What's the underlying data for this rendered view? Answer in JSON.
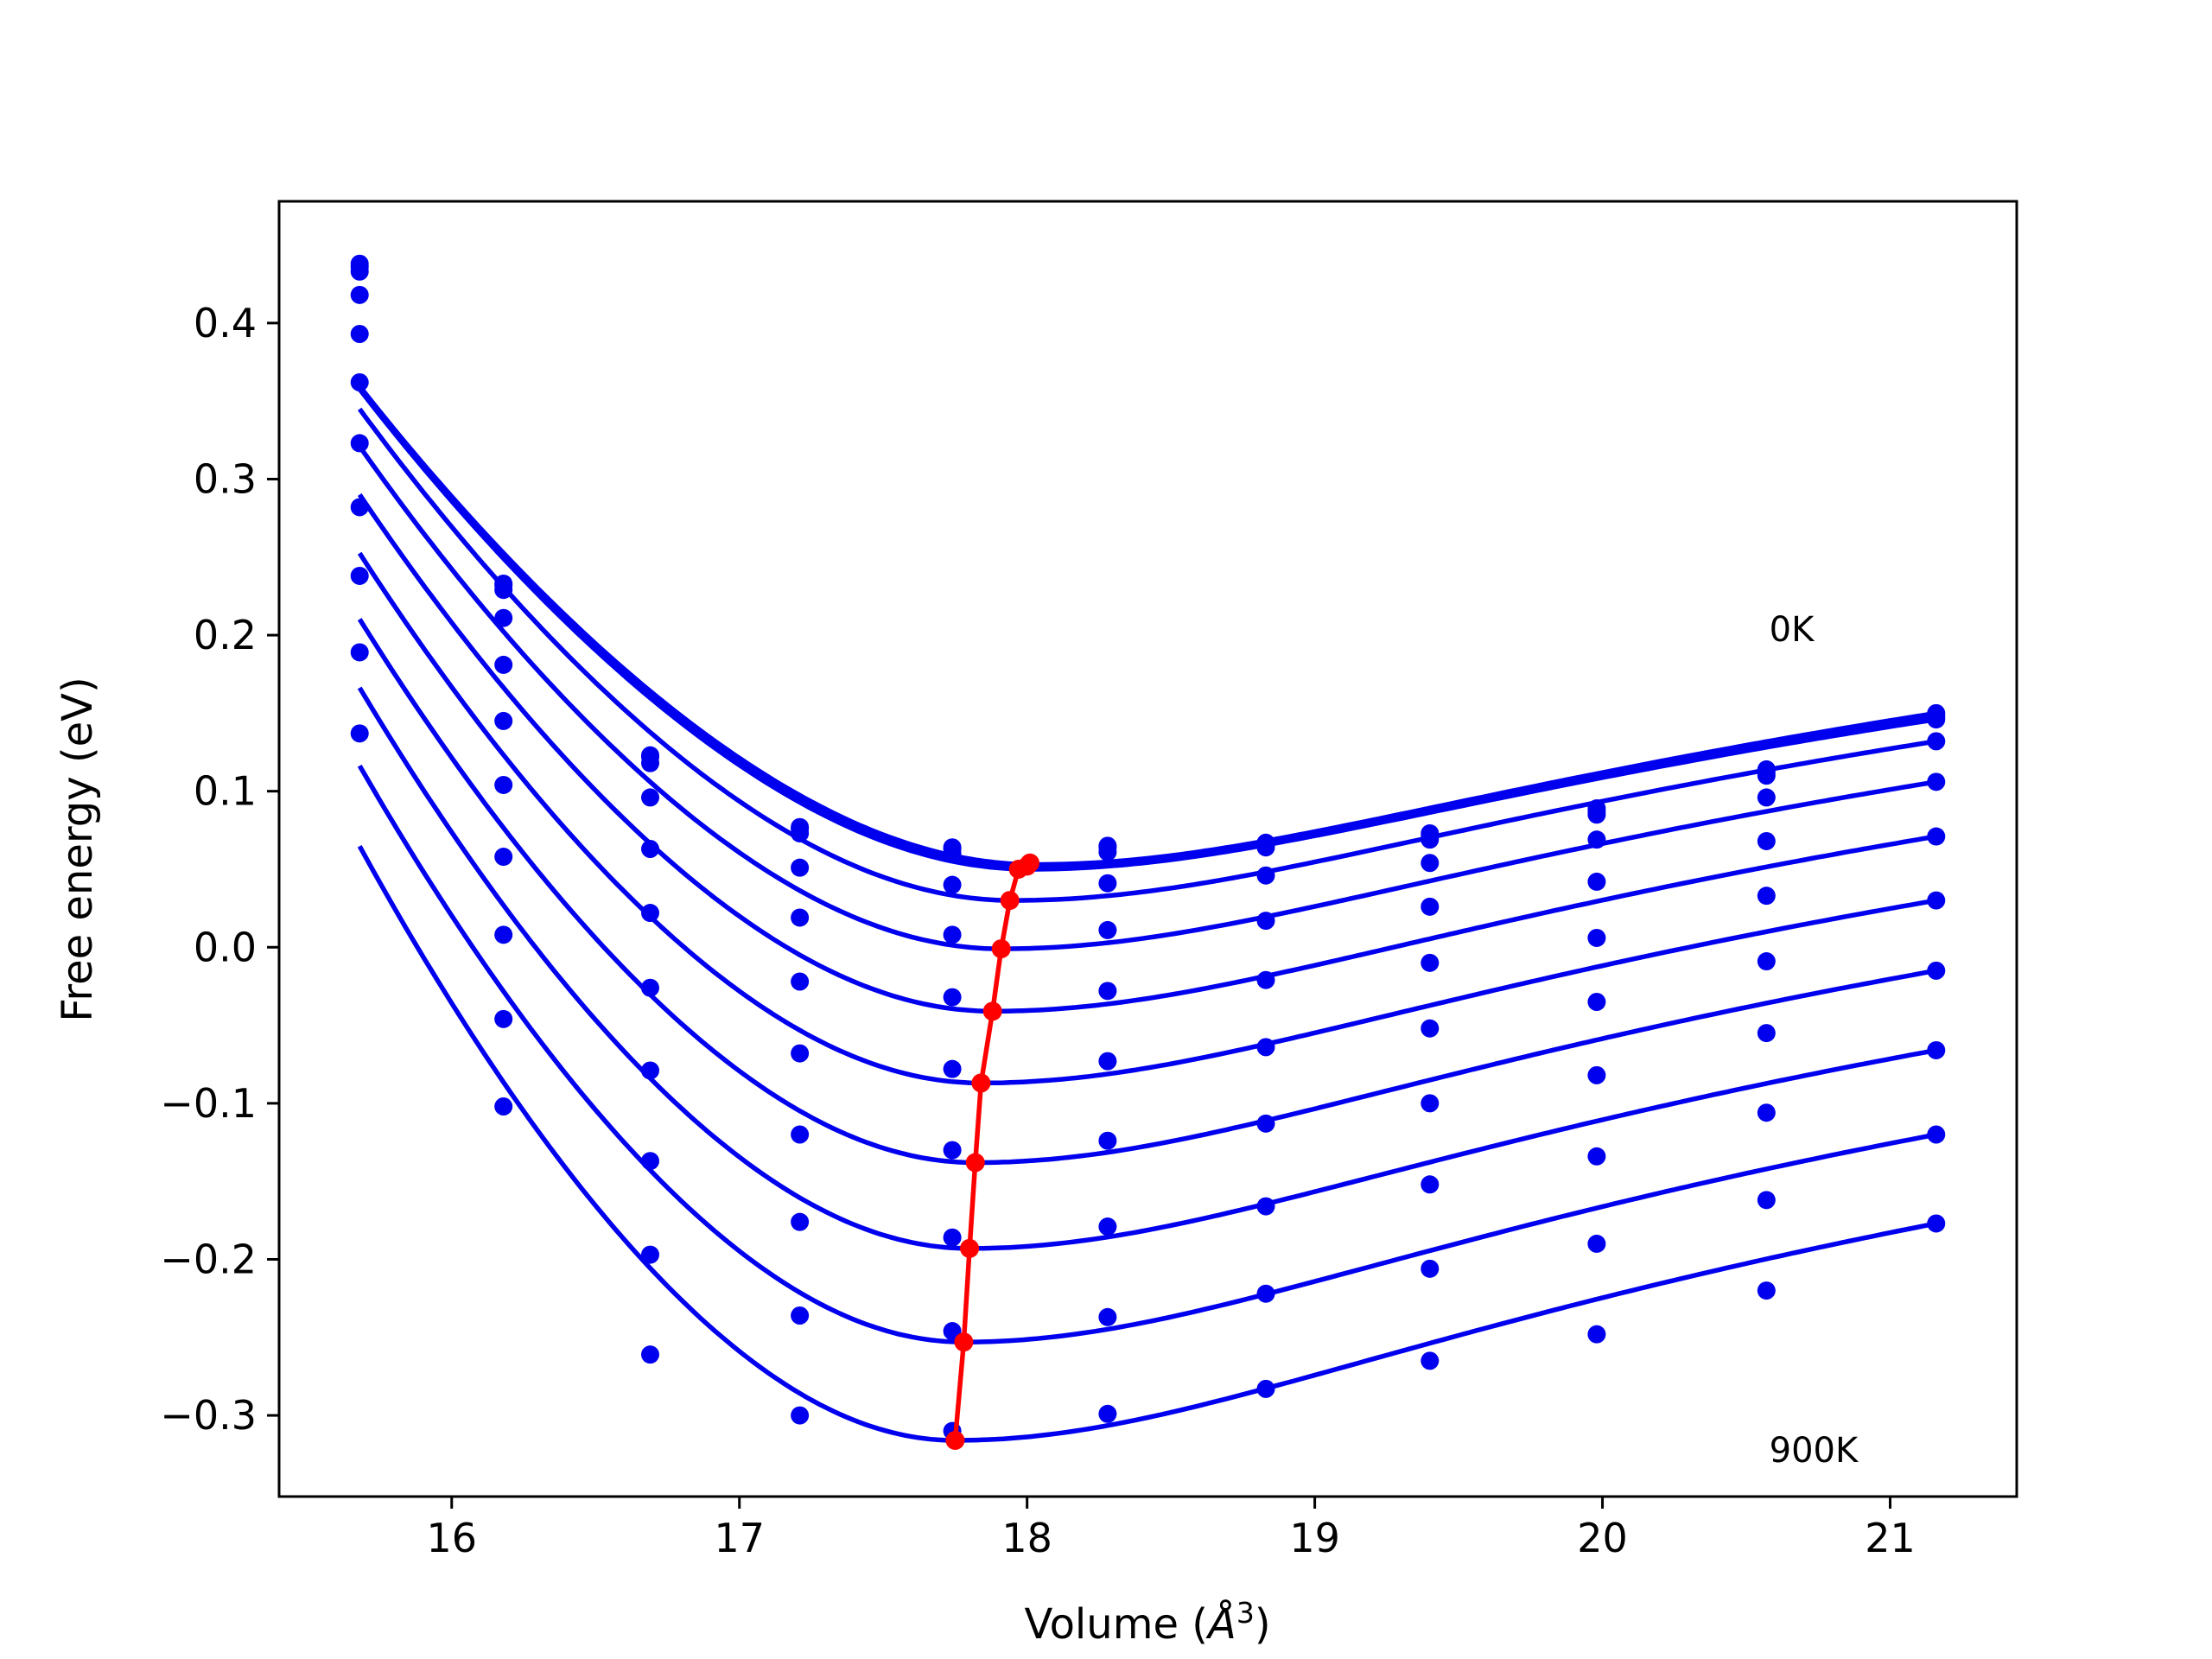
{
  "chart_data": {
    "type": "line",
    "title": "",
    "xlabel": "Volume (Å³)",
    "xlabel_parts": {
      "main": "Volume (",
      "symbol": "Å",
      "exponent": "3",
      "close": ")"
    },
    "ylabel": "Free energy (eV)",
    "xlim": [
      15.4,
      21.44
    ],
    "ylim": [
      -0.352,
      0.478
    ],
    "xticks": [
      16,
      17,
      18,
      19,
      20,
      21
    ],
    "xtick_labels": [
      "16",
      "17",
      "18",
      "19",
      "20",
      "21"
    ],
    "yticks": [
      -0.3,
      -0.2,
      -0.1,
      0.0,
      0.1,
      0.2,
      0.3,
      0.4
    ],
    "ytick_labels": [
      "−0.3",
      "−0.2",
      "−0.1",
      "0.0",
      "0.1",
      "0.2",
      "0.3",
      "0.4"
    ],
    "grid": false,
    "annotations": [
      {
        "text": "0K",
        "x": 20.58,
        "y": 0.204
      },
      {
        "text": "900K",
        "x": 20.58,
        "y": -0.322
      }
    ],
    "x": [
      15.68,
      16.18,
      16.69,
      17.21,
      17.74,
      18.28,
      18.83,
      19.4,
      19.98,
      20.57,
      21.16
    ],
    "series": [
      {
        "values": [
          0.438,
          0.233,
          0.123,
          0.077,
          0.064,
          0.065,
          0.067,
          0.073,
          0.089,
          0.114,
          0.15
        ],
        "min": [
          18.03,
          0.053
        ]
      },
      {
        "values": [
          0.436,
          0.232,
          0.122,
          0.076,
          0.063,
          0.064,
          0.066,
          0.072,
          0.087,
          0.112,
          0.148
        ],
        "min": [
          18.02,
          0.052
        ]
      },
      {
        "values": [
          0.433,
          0.229,
          0.118,
          0.073,
          0.06,
          0.061,
          0.064,
          0.069,
          0.085,
          0.11,
          0.146
        ],
        "min": [
          18.01,
          0.05
        ]
      },
      {
        "values": [
          0.418,
          0.211,
          0.096,
          0.051,
          0.04,
          0.041,
          0.046,
          0.054,
          0.069,
          0.096,
          0.132
        ],
        "min": [
          17.95,
          0.03
        ]
      },
      {
        "values": [
          0.393,
          0.181,
          0.063,
          0.019,
          0.008,
          0.011,
          0.017,
          0.026,
          0.042,
          0.068,
          0.106
        ],
        "min": [
          17.91,
          -0.001
        ]
      },
      {
        "values": [
          0.362,
          0.145,
          0.022,
          -0.022,
          -0.032,
          -0.028,
          -0.021,
          -0.01,
          0.006,
          0.033,
          0.071
        ],
        "min": [
          17.88,
          -0.041
        ]
      },
      {
        "values": [
          0.323,
          0.104,
          -0.026,
          -0.068,
          -0.078,
          -0.073,
          -0.064,
          -0.052,
          -0.035,
          -0.009,
          0.03
        ],
        "min": [
          17.84,
          -0.087
        ]
      },
      {
        "values": [
          0.282,
          0.058,
          -0.079,
          -0.12,
          -0.13,
          -0.124,
          -0.113,
          -0.1,
          -0.082,
          -0.055,
          -0.015
        ],
        "min": [
          17.82,
          -0.138
        ]
      },
      {
        "values": [
          0.238,
          0.008,
          -0.137,
          -0.176,
          -0.186,
          -0.179,
          -0.166,
          -0.152,
          -0.134,
          -0.106,
          -0.066
        ],
        "min": [
          17.8,
          -0.193
        ]
      },
      {
        "values": [
          0.189,
          -0.046,
          -0.197,
          -0.236,
          -0.246,
          -0.237,
          -0.222,
          -0.206,
          -0.19,
          -0.162,
          -0.12
        ],
        "min": [
          17.78,
          -0.253
        ]
      },
      {
        "values": [
          0.137,
          -0.102,
          -0.261,
          -0.3,
          -0.31,
          -0.299,
          -0.283,
          -0.265,
          -0.248,
          -0.22,
          -0.177
        ],
        "min": [
          17.75,
          -0.316
        ]
      }
    ],
    "minima_curve": {
      "x": [
        18.01,
        18.0,
        17.97,
        17.94,
        17.91,
        17.88,
        17.84,
        17.82,
        17.8,
        17.78,
        17.75
      ],
      "y": [
        0.054,
        0.052,
        0.05,
        0.03,
        -0.001,
        -0.041,
        -0.087,
        -0.138,
        -0.193,
        -0.253,
        -0.316
      ]
    },
    "colors": {
      "fit": "#0000ee",
      "points": "#0000ee",
      "minima": "#ff0000",
      "axes": "#000000"
    }
  }
}
